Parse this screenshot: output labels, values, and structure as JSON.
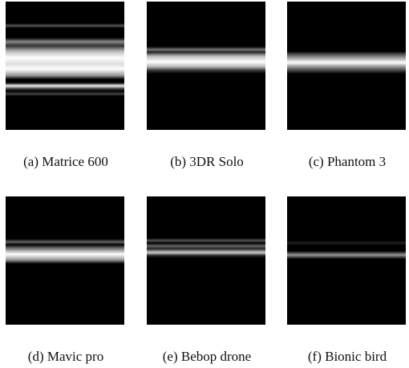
{
  "panels": [
    {
      "caption": "(a) Matrice 600"
    },
    {
      "caption": "(b) 3DR Solo"
    },
    {
      "caption": "(c) Phantom 3"
    },
    {
      "caption": "(d) Mavic pro"
    },
    {
      "caption": "(e) Bebop drone"
    },
    {
      "caption": "(f) Bionic bird"
    }
  ]
}
